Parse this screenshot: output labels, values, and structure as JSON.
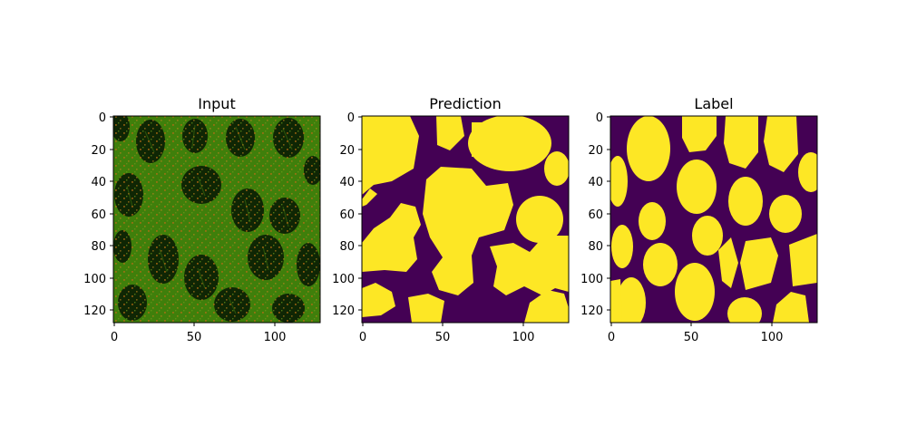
{
  "panels": [
    {
      "title": "Input",
      "kind": "histology-image",
      "colors": {
        "tissue": "#3f7f0b",
        "gland": "#0f2604",
        "speckle": "#b66b14"
      },
      "x_ticks": [
        "0",
        "50",
        "100"
      ],
      "y_ticks": [
        "0",
        "20",
        "40",
        "60",
        "80",
        "100",
        "120"
      ]
    },
    {
      "title": "Prediction",
      "kind": "segmentation-mask",
      "colors": {
        "background": "#440154",
        "foreground": "#fde725",
        "edge": "#21918c"
      },
      "x_ticks": [
        "0",
        "50",
        "100"
      ],
      "y_ticks": [
        "0",
        "20",
        "40",
        "60",
        "80",
        "100",
        "120"
      ]
    },
    {
      "title": "Label",
      "kind": "segmentation-mask",
      "colors": {
        "background": "#440154",
        "foreground": "#fde725",
        "edge": "#21918c"
      },
      "x_ticks": [
        "0",
        "50",
        "100"
      ],
      "y_ticks": [
        "0",
        "20",
        "40",
        "60",
        "80",
        "100",
        "120"
      ]
    }
  ]
}
